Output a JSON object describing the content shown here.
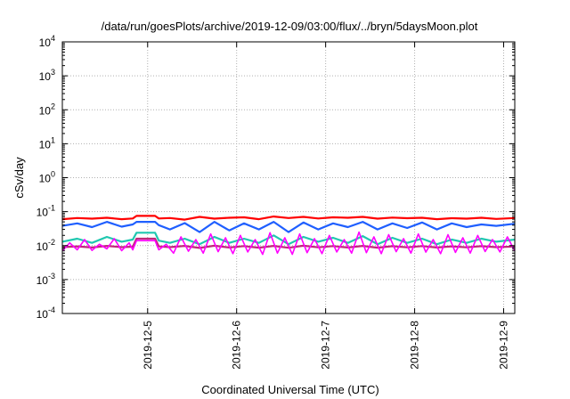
{
  "chart_data": {
    "type": "line",
    "title": "/data/run/goesPlots/archive/2019-12-09/03:00/flux/../bryn/5daysMoon.plot",
    "xlabel": "Coordinated Universal Time (UTC)",
    "ylabel": "cSv/day",
    "yscale": "log",
    "ylim": [
      0.0001,
      10000
    ],
    "xlim": [
      "2019-12-04 01:00",
      "2019-12-09 03:00"
    ],
    "grid": true,
    "legend": "none",
    "y_ticks": [
      {
        "base": "10",
        "exp": "-4",
        "value": 0.0001
      },
      {
        "base": "10",
        "exp": "-3",
        "value": 0.001
      },
      {
        "base": "10",
        "exp": "-2",
        "value": 0.01
      },
      {
        "base": "10",
        "exp": "-1",
        "value": 0.1
      },
      {
        "base": "10",
        "exp": "0",
        "value": 1
      },
      {
        "base": "10",
        "exp": "1",
        "value": 10
      },
      {
        "base": "10",
        "exp": "2",
        "value": 100
      },
      {
        "base": "10",
        "exp": "3",
        "value": 1000
      },
      {
        "base": "10",
        "exp": "4",
        "value": 10000
      }
    ],
    "x_ticks": [
      {
        "label": "2019-12-5",
        "value": "2019-12-05 00:00"
      },
      {
        "label": "2019-12-6",
        "value": "2019-12-06 00:00"
      },
      {
        "label": "2019-12-7",
        "value": "2019-12-07 00:00"
      },
      {
        "label": "2019-12-8",
        "value": "2019-12-08 00:00"
      },
      {
        "label": "2019-12-9",
        "value": "2019-12-09 00:00"
      }
    ],
    "series": [
      {
        "color": "#ff0000",
        "x": [
          "2019-12-04 01:00",
          "2019-12-04 05:00",
          "2019-12-04 09:00",
          "2019-12-04 13:00",
          "2019-12-04 17:00",
          "2019-12-04 20:00",
          "2019-12-04 21:00",
          "2019-12-05 02:00",
          "2019-12-05 03:00",
          "2019-12-05 06:00",
          "2019-12-05 10:00",
          "2019-12-05 14:00",
          "2019-12-05 18:00",
          "2019-12-05 22:00",
          "2019-12-06 02:00",
          "2019-12-06 06:00",
          "2019-12-06 10:00",
          "2019-12-06 14:00",
          "2019-12-06 18:00",
          "2019-12-06 22:00",
          "2019-12-07 02:00",
          "2019-12-07 06:00",
          "2019-12-07 10:00",
          "2019-12-07 14:00",
          "2019-12-07 18:00",
          "2019-12-07 22:00",
          "2019-12-08 02:00",
          "2019-12-08 06:00",
          "2019-12-08 10:00",
          "2019-12-08 14:00",
          "2019-12-08 18:00",
          "2019-12-08 22:00",
          "2019-12-09 03:00"
        ],
        "y": [
          0.06,
          0.065,
          0.062,
          0.066,
          0.06,
          0.063,
          0.075,
          0.075,
          0.063,
          0.065,
          0.058,
          0.07,
          0.062,
          0.066,
          0.068,
          0.06,
          0.072,
          0.065,
          0.07,
          0.063,
          0.068,
          0.066,
          0.07,
          0.062,
          0.067,
          0.064,
          0.066,
          0.06,
          0.064,
          0.062,
          0.066,
          0.061,
          0.065
        ]
      },
      {
        "color": "#1f5fff",
        "x": [
          "2019-12-04 01:00",
          "2019-12-04 05:00",
          "2019-12-04 09:00",
          "2019-12-04 13:00",
          "2019-12-04 17:00",
          "2019-12-04 20:00",
          "2019-12-04 21:00",
          "2019-12-05 02:00",
          "2019-12-05 03:00",
          "2019-12-05 06:00",
          "2019-12-05 10:00",
          "2019-12-05 14:00",
          "2019-12-05 18:00",
          "2019-12-05 22:00",
          "2019-12-06 02:00",
          "2019-12-06 06:00",
          "2019-12-06 10:00",
          "2019-12-06 14:00",
          "2019-12-06 18:00",
          "2019-12-06 22:00",
          "2019-12-07 02:00",
          "2019-12-07 06:00",
          "2019-12-07 10:00",
          "2019-12-07 14:00",
          "2019-12-07 18:00",
          "2019-12-07 22:00",
          "2019-12-08 02:00",
          "2019-12-08 06:00",
          "2019-12-08 10:00",
          "2019-12-08 14:00",
          "2019-12-08 18:00",
          "2019-12-08 22:00",
          "2019-12-09 03:00"
        ],
        "y": [
          0.038,
          0.045,
          0.035,
          0.05,
          0.036,
          0.042,
          0.05,
          0.05,
          0.04,
          0.03,
          0.046,
          0.025,
          0.05,
          0.028,
          0.045,
          0.03,
          0.05,
          0.025,
          0.048,
          0.03,
          0.045,
          0.035,
          0.05,
          0.03,
          0.045,
          0.033,
          0.048,
          0.03,
          0.045,
          0.035,
          0.042,
          0.038,
          0.044
        ]
      },
      {
        "color": "#20c8b0",
        "x": [
          "2019-12-04 01:00",
          "2019-12-04 05:00",
          "2019-12-04 09:00",
          "2019-12-04 13:00",
          "2019-12-04 17:00",
          "2019-12-04 20:00",
          "2019-12-04 21:00",
          "2019-12-05 02:00",
          "2019-12-05 03:00",
          "2019-12-05 06:00",
          "2019-12-05 10:00",
          "2019-12-05 14:00",
          "2019-12-05 18:00",
          "2019-12-05 22:00",
          "2019-12-06 02:00",
          "2019-12-06 06:00",
          "2019-12-06 10:00",
          "2019-12-06 14:00",
          "2019-12-06 18:00",
          "2019-12-06 22:00",
          "2019-12-07 02:00",
          "2019-12-07 06:00",
          "2019-12-07 10:00",
          "2019-12-07 14:00",
          "2019-12-07 18:00",
          "2019-12-07 22:00",
          "2019-12-08 02:00",
          "2019-12-08 06:00",
          "2019-12-08 10:00",
          "2019-12-08 14:00",
          "2019-12-08 18:00",
          "2019-12-08 22:00",
          "2019-12-09 03:00"
        ],
        "y": [
          0.013,
          0.016,
          0.012,
          0.018,
          0.013,
          0.015,
          0.024,
          0.024,
          0.014,
          0.012,
          0.016,
          0.011,
          0.018,
          0.012,
          0.016,
          0.012,
          0.02,
          0.011,
          0.018,
          0.013,
          0.017,
          0.012,
          0.019,
          0.011,
          0.017,
          0.012,
          0.016,
          0.011,
          0.015,
          0.012,
          0.016,
          0.013,
          0.015
        ]
      },
      {
        "color": "#c0287a",
        "x": [
          "2019-12-04 01:00",
          "2019-12-04 05:00",
          "2019-12-04 09:00",
          "2019-12-04 13:00",
          "2019-12-04 17:00",
          "2019-12-04 20:00",
          "2019-12-04 21:00",
          "2019-12-05 02:00",
          "2019-12-05 03:00",
          "2019-12-05 06:00",
          "2019-12-05 10:00",
          "2019-12-05 14:00",
          "2019-12-05 18:00",
          "2019-12-05 22:00",
          "2019-12-06 02:00",
          "2019-12-06 06:00",
          "2019-12-06 10:00",
          "2019-12-06 14:00",
          "2019-12-06 18:00",
          "2019-12-06 22:00",
          "2019-12-07 02:00",
          "2019-12-07 06:00",
          "2019-12-07 10:00",
          "2019-12-07 14:00",
          "2019-12-07 18:00",
          "2019-12-07 22:00",
          "2019-12-08 02:00",
          "2019-12-08 06:00",
          "2019-12-08 10:00",
          "2019-12-08 14:00",
          "2019-12-08 18:00",
          "2019-12-08 22:00",
          "2019-12-09 03:00"
        ],
        "y": [
          0.009,
          0.0095,
          0.0088,
          0.0098,
          0.009,
          0.0093,
          0.016,
          0.016,
          0.0095,
          0.009,
          0.0098,
          0.0085,
          0.0099,
          0.0088,
          0.0097,
          0.0087,
          0.0098,
          0.0086,
          0.0099,
          0.0089,
          0.0097,
          0.0088,
          0.0098,
          0.0087,
          0.0096,
          0.0089,
          0.0097,
          0.0088,
          0.0095,
          0.0089,
          0.0096,
          0.009,
          0.0094
        ]
      },
      {
        "color": "#ff00ff",
        "x": [
          "2019-12-04 01:00",
          "2019-12-04 03:00",
          "2019-12-04 05:00",
          "2019-12-04 07:00",
          "2019-12-04 09:00",
          "2019-12-04 11:00",
          "2019-12-04 13:00",
          "2019-12-04 15:00",
          "2019-12-04 17:00",
          "2019-12-04 19:00",
          "2019-12-04 20:00",
          "2019-12-04 21:00",
          "2019-12-05 02:00",
          "2019-12-05 03:00",
          "2019-12-05 05:00",
          "2019-12-05 07:00",
          "2019-12-05 09:00",
          "2019-12-05 11:00",
          "2019-12-05 13:00",
          "2019-12-05 15:00",
          "2019-12-05 17:00",
          "2019-12-05 19:00",
          "2019-12-05 21:00",
          "2019-12-05 23:00",
          "2019-12-06 01:00",
          "2019-12-06 03:00",
          "2019-12-06 05:00",
          "2019-12-06 07:00",
          "2019-12-06 09:00",
          "2019-12-06 11:00",
          "2019-12-06 13:00",
          "2019-12-06 15:00",
          "2019-12-06 17:00",
          "2019-12-06 19:00",
          "2019-12-06 21:00",
          "2019-12-06 23:00",
          "2019-12-07 01:00",
          "2019-12-07 03:00",
          "2019-12-07 05:00",
          "2019-12-07 07:00",
          "2019-12-07 09:00",
          "2019-12-07 11:00",
          "2019-12-07 13:00",
          "2019-12-07 15:00",
          "2019-12-07 17:00",
          "2019-12-07 19:00",
          "2019-12-07 21:00",
          "2019-12-07 23:00",
          "2019-12-08 01:00",
          "2019-12-08 03:00",
          "2019-12-08 05:00",
          "2019-12-08 07:00",
          "2019-12-08 09:00",
          "2019-12-08 11:00",
          "2019-12-08 13:00",
          "2019-12-08 15:00",
          "2019-12-08 17:00",
          "2019-12-08 19:00",
          "2019-12-08 21:00",
          "2019-12-08 23:00",
          "2019-12-09 01:00",
          "2019-12-09 03:00"
        ],
        "y": [
          0.007,
          0.012,
          0.0075,
          0.015,
          0.0072,
          0.011,
          0.008,
          0.016,
          0.0071,
          0.012,
          0.0075,
          0.014,
          0.014,
          0.0075,
          0.011,
          0.006,
          0.018,
          0.0068,
          0.015,
          0.006,
          0.022,
          0.0066,
          0.017,
          0.0058,
          0.02,
          0.0065,
          0.015,
          0.0055,
          0.024,
          0.006,
          0.017,
          0.0055,
          0.022,
          0.0062,
          0.016,
          0.0058,
          0.02,
          0.0065,
          0.015,
          0.006,
          0.025,
          0.0062,
          0.018,
          0.0058,
          0.021,
          0.0066,
          0.016,
          0.006,
          0.022,
          0.0064,
          0.015,
          0.0058,
          0.021,
          0.0063,
          0.017,
          0.006,
          0.02,
          0.0067,
          0.015,
          0.0065,
          0.018,
          0.007
        ]
      }
    ]
  }
}
